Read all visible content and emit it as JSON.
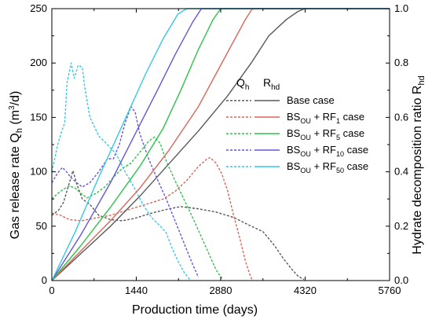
{
  "chart_data": {
    "type": "line",
    "xlabel": "Production time (days)",
    "ylabel_left": "Gas release rate Q",
    "ylabel_left_sub": "h",
    "ylabel_left_unit": " (m",
    "ylabel_left_unit_sup": "3",
    "ylabel_left_unit_end": "/d)",
    "ylabel_right": "Hydrate decomposition ratio R",
    "ylabel_right_sub": "hd",
    "xlim": [
      0,
      5760
    ],
    "ylim_left": [
      0,
      250
    ],
    "ylim_right": [
      0,
      1.0
    ],
    "xticks": [
      "0",
      "1440",
      "2880",
      "4320",
      "5760"
    ],
    "xtick_values": [
      0,
      1440,
      2880,
      4320,
      5760
    ],
    "yticks_left": [
      "0",
      "50",
      "100",
      "150",
      "200",
      "250"
    ],
    "ytick_left_values": [
      0,
      50,
      100,
      150,
      200,
      250
    ],
    "yticks_right": [
      "0.0",
      "0.2",
      "0.4",
      "0.6",
      "0.8",
      "1.0"
    ],
    "ytick_right_values": [
      0,
      0.2,
      0.4,
      0.6,
      0.8,
      1.0
    ],
    "legend": {
      "head_q": "Q",
      "head_q_sub": "h",
      "head_r": "R",
      "head_r_sub": "hd",
      "entries": [
        {
          "label": "Base case",
          "color": "#595959"
        },
        {
          "label": "BS",
          "sub": "OU",
          "mid": " + RF",
          "sub2": "1",
          "tail": "  case",
          "color": "#d8675a"
        },
        {
          "label": "BS",
          "sub": "OU",
          "mid": " + RF",
          "sub2": "5",
          "tail": "  case",
          "color": "#2ec24a"
        },
        {
          "label": "BS",
          "sub": "OU",
          "mid": " + RF",
          "sub2": "10",
          "tail": " case",
          "color": "#6655d8"
        },
        {
          "label": "BS",
          "sub": "OU",
          "mid": " + RF",
          "sub2": "50",
          "tail": " case",
          "color": "#35c8e8"
        }
      ]
    },
    "series": [
      {
        "name": "Base case Q",
        "kind": "Q",
        "color": "#595959",
        "points": [
          [
            0,
            60
          ],
          [
            120,
            65
          ],
          [
            200,
            72
          ],
          [
            300,
            90
          ],
          [
            360,
            101
          ],
          [
            430,
            88
          ],
          [
            520,
            75
          ],
          [
            650,
            70
          ],
          [
            800,
            60
          ],
          [
            1000,
            56
          ],
          [
            1200,
            55
          ],
          [
            1400,
            57
          ],
          [
            1700,
            62
          ],
          [
            2000,
            66
          ],
          [
            2200,
            68
          ],
          [
            2500,
            66
          ],
          [
            2800,
            63
          ],
          [
            3100,
            58
          ],
          [
            3400,
            50
          ],
          [
            3600,
            45
          ],
          [
            3800,
            32
          ],
          [
            3950,
            20
          ],
          [
            4100,
            10
          ],
          [
            4200,
            4
          ],
          [
            4300,
            1
          ]
        ]
      },
      {
        "name": "BS_OU + RF_1 Q",
        "kind": "Q",
        "color": "#d8675a",
        "points": [
          [
            0,
            62
          ],
          [
            150,
            60
          ],
          [
            300,
            56
          ],
          [
            500,
            55
          ],
          [
            700,
            57
          ],
          [
            1000,
            60
          ],
          [
            1300,
            65
          ],
          [
            1600,
            70
          ],
          [
            1900,
            75
          ],
          [
            2100,
            82
          ],
          [
            2300,
            92
          ],
          [
            2500,
            105
          ],
          [
            2650,
            112
          ],
          [
            2700,
            113
          ],
          [
            2800,
            108
          ],
          [
            2900,
            98
          ],
          [
            3000,
            82
          ],
          [
            3100,
            60
          ],
          [
            3200,
            40
          ],
          [
            3300,
            18
          ],
          [
            3380,
            5
          ],
          [
            3420,
            0
          ]
        ]
      },
      {
        "name": "BS_OU + RF_5 Q",
        "kind": "Q",
        "color": "#2ec24a",
        "points": [
          [
            0,
            75
          ],
          [
            100,
            80
          ],
          [
            200,
            84
          ],
          [
            300,
            87
          ],
          [
            400,
            85
          ],
          [
            500,
            80
          ],
          [
            600,
            76
          ],
          [
            750,
            80
          ],
          [
            900,
            86
          ],
          [
            1050,
            95
          ],
          [
            1200,
            103
          ],
          [
            1350,
            108
          ],
          [
            1500,
            118
          ],
          [
            1650,
            128
          ],
          [
            1750,
            132
          ],
          [
            1850,
            126
          ],
          [
            1950,
            110
          ],
          [
            2100,
            92
          ],
          [
            2250,
            75
          ],
          [
            2400,
            58
          ],
          [
            2550,
            40
          ],
          [
            2700,
            22
          ],
          [
            2800,
            10
          ],
          [
            2900,
            2
          ]
        ]
      },
      {
        "name": "BS_OU + RF_10 Q",
        "kind": "Q",
        "color": "#6655d8",
        "points": [
          [
            0,
            90
          ],
          [
            100,
            99
          ],
          [
            180,
            104
          ],
          [
            250,
            100
          ],
          [
            320,
            95
          ],
          [
            420,
            90
          ],
          [
            520,
            86
          ],
          [
            650,
            90
          ],
          [
            800,
            100
          ],
          [
            950,
            112
          ],
          [
            1050,
            112
          ],
          [
            1150,
            125
          ],
          [
            1250,
            145
          ],
          [
            1350,
            160
          ],
          [
            1420,
            155
          ],
          [
            1500,
            135
          ],
          [
            1650,
            112
          ],
          [
            1800,
            93
          ],
          [
            1950,
            75
          ],
          [
            2100,
            55
          ],
          [
            2250,
            35
          ],
          [
            2400,
            15
          ],
          [
            2500,
            3
          ]
        ]
      },
      {
        "name": "BS_OU + RF_50 Q",
        "kind": "Q",
        "color": "#35c8e8",
        "points": [
          [
            0,
            100
          ],
          [
            100,
            125
          ],
          [
            160,
            136
          ],
          [
            220,
            145
          ],
          [
            260,
            182
          ],
          [
            330,
            200
          ],
          [
            380,
            186
          ],
          [
            450,
            198
          ],
          [
            520,
            196
          ],
          [
            560,
            178
          ],
          [
            650,
            150
          ],
          [
            800,
            133
          ],
          [
            950,
            125
          ],
          [
            1100,
            116
          ],
          [
            1250,
            100
          ],
          [
            1400,
            86
          ],
          [
            1550,
            70
          ],
          [
            1700,
            58
          ],
          [
            1850,
            50
          ],
          [
            1950,
            44
          ],
          [
            2050,
            30
          ],
          [
            2150,
            18
          ],
          [
            2250,
            8
          ],
          [
            2350,
            1
          ]
        ]
      },
      {
        "name": "Base case R",
        "kind": "R",
        "color": "#595959",
        "points": [
          [
            0,
            0
          ],
          [
            500,
            0.1
          ],
          [
            1000,
            0.2
          ],
          [
            1500,
            0.31
          ],
          [
            2000,
            0.43
          ],
          [
            2500,
            0.55
          ],
          [
            3000,
            0.68
          ],
          [
            3400,
            0.8
          ],
          [
            3700,
            0.9
          ],
          [
            4000,
            0.96
          ],
          [
            4200,
            0.99
          ],
          [
            4320,
            1.0
          ],
          [
            5760,
            1.0
          ]
        ]
      },
      {
        "name": "BS_OU + RF_1 R",
        "kind": "R",
        "color": "#d8675a",
        "points": [
          [
            0,
            0
          ],
          [
            500,
            0.11
          ],
          [
            1000,
            0.22
          ],
          [
            1500,
            0.34
          ],
          [
            2000,
            0.48
          ],
          [
            2500,
            0.64
          ],
          [
            2800,
            0.76
          ],
          [
            3100,
            0.88
          ],
          [
            3300,
            0.96
          ],
          [
            3420,
            1.0
          ],
          [
            5760,
            1.0
          ]
        ]
      },
      {
        "name": "BS_OU + RF_5 R",
        "kind": "R",
        "color": "#2ec24a",
        "points": [
          [
            0,
            0
          ],
          [
            500,
            0.13
          ],
          [
            1000,
            0.27
          ],
          [
            1500,
            0.42
          ],
          [
            1900,
            0.56
          ],
          [
            2200,
            0.7
          ],
          [
            2500,
            0.85
          ],
          [
            2750,
            0.96
          ],
          [
            2880,
            1.0
          ],
          [
            5760,
            1.0
          ]
        ]
      },
      {
        "name": "BS_OU + RF_10 R",
        "kind": "R",
        "color": "#6655d8",
        "points": [
          [
            0,
            0
          ],
          [
            500,
            0.17
          ],
          [
            1000,
            0.36
          ],
          [
            1400,
            0.53
          ],
          [
            1800,
            0.7
          ],
          [
            2100,
            0.83
          ],
          [
            2400,
            0.95
          ],
          [
            2550,
            1.0
          ],
          [
            5760,
            1.0
          ]
        ]
      },
      {
        "name": "BS_OU + RF_50 R",
        "kind": "R",
        "color": "#35c8e8",
        "points": [
          [
            0,
            0
          ],
          [
            400,
            0.18
          ],
          [
            800,
            0.38
          ],
          [
            1200,
            0.57
          ],
          [
            1600,
            0.76
          ],
          [
            1900,
            0.89
          ],
          [
            2150,
            0.98
          ],
          [
            2300,
            1.0
          ],
          [
            5760,
            1.0
          ]
        ]
      }
    ]
  }
}
